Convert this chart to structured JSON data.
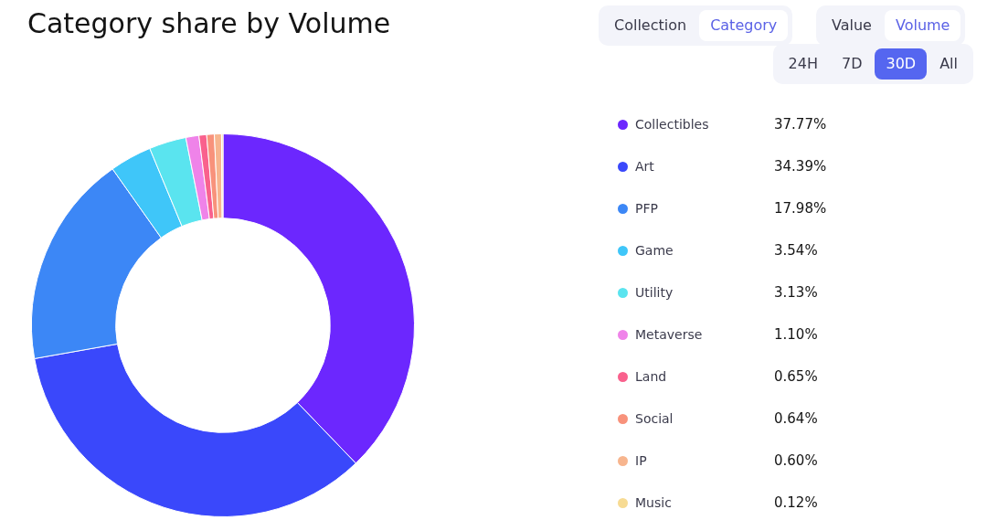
{
  "chart_data": {
    "type": "donut",
    "title": "Category share by Volume",
    "categories": [
      "Collectibles",
      "Art",
      "PFP",
      "Game",
      "Utility",
      "Metaverse",
      "Land",
      "Social",
      "IP",
      "Music"
    ],
    "values": [
      37.77,
      34.39,
      17.98,
      3.54,
      3.13,
      1.1,
      0.65,
      0.64,
      0.6,
      0.12
    ],
    "value_labels": [
      "37.77%",
      "34.39%",
      "17.98%",
      "3.54%",
      "3.13%",
      "1.10%",
      "0.65%",
      "0.64%",
      "0.60%",
      "0.12%"
    ],
    "colors": [
      "#6c27fe",
      "#3a48fb",
      "#3c87f6",
      "#3fc6f9",
      "#5ae4ef",
      "#ef83e9",
      "#f9618d",
      "#f8927b",
      "#f7b58e",
      "#f7db93"
    ],
    "legend": "right",
    "annotations": [
      "Collection",
      "Category",
      "Value",
      "Volume",
      "24H",
      "7D",
      "30D",
      "All"
    ]
  }
}
